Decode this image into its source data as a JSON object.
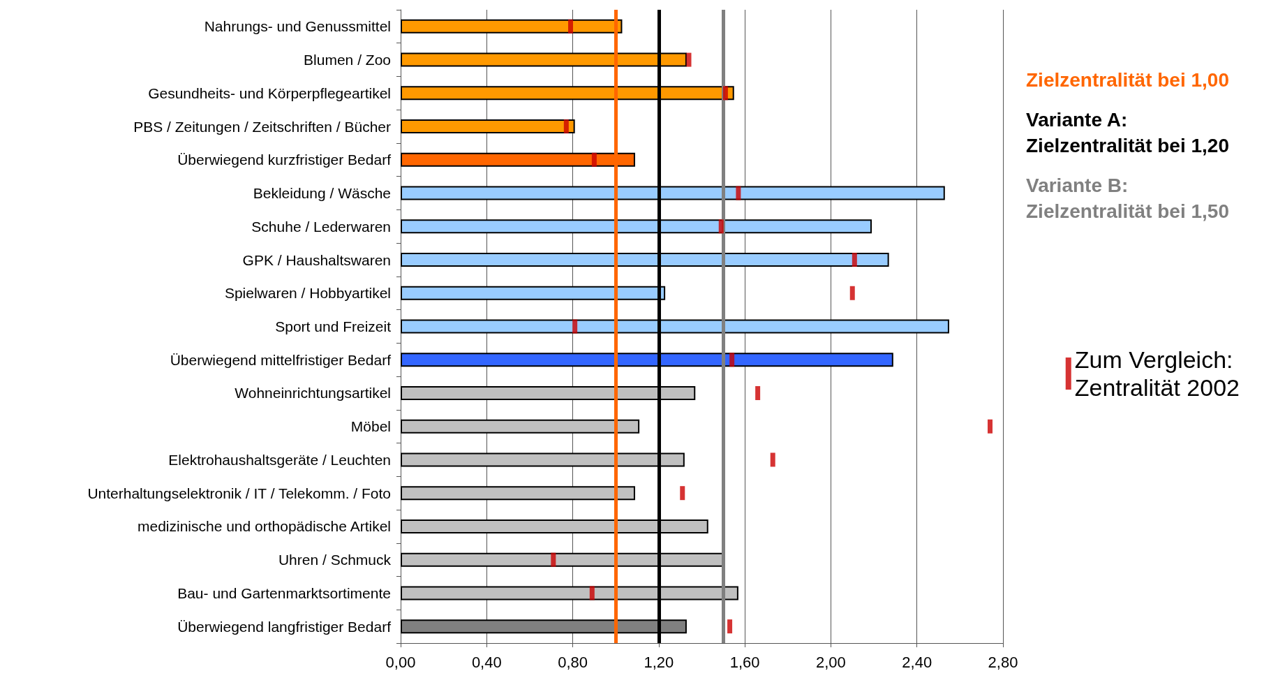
{
  "chart_data": {
    "type": "bar",
    "orientation": "horizontal",
    "categories": [
      "Nahrungs- und Genussmittel",
      "Blumen / Zoo",
      "Gesundheits- und Körperpflegeartikel",
      "PBS / Zeitungen / Zeitschriften / Bücher",
      "Überwiegend kurzfristiger Bedarf",
      "Bekleidung / Wäsche",
      "Schuhe / Lederwaren",
      "GPK / Haushaltswaren",
      "Spielwaren / Hobbyartikel",
      "Sport und Freizeit",
      "Überwiegend mittelfristiger Bedarf",
      "Wohneinrichtungsartikel",
      "Möbel",
      "Elektrohaushaltsgeräte / Leuchten",
      "Unterhaltungselektronik / IT / Telekomm. / Foto",
      "medizinische und orthopädische Artikel",
      "Uhren / Schmuck",
      "Bau- und Gartenmarktsortimente",
      "Überwiegend langfristiger Bedarf"
    ],
    "series": [
      {
        "type": "bar",
        "colors": [
          "#ff9900",
          "#ff9900",
          "#ff9900",
          "#ff9900",
          "#ff6600",
          "#99ccff",
          "#99ccff",
          "#99ccff",
          "#99ccff",
          "#99ccff",
          "#3366ff",
          "#c0c0c0",
          "#c0c0c0",
          "#c0c0c0",
          "#c0c0c0",
          "#c0c0c0",
          "#c0c0c0",
          "#c0c0c0",
          "#808080"
        ],
        "values": [
          1.03,
          1.33,
          1.55,
          0.81,
          1.09,
          2.53,
          2.19,
          2.27,
          1.23,
          2.55,
          2.29,
          1.37,
          1.11,
          1.32,
          1.09,
          1.43,
          1.5,
          1.57,
          1.33
        ]
      },
      {
        "type": "scatter",
        "name": "Zum Vergleich:\nZentralität 2002",
        "color": "#cc0000",
        "values": [
          0.79,
          1.34,
          1.51,
          0.77,
          0.9,
          1.57,
          1.49,
          2.11,
          2.1,
          0.81,
          1.54,
          1.66,
          2.74,
          1.73,
          1.31,
          null,
          0.71,
          0.89,
          1.53
        ]
      }
    ],
    "xlim": [
      0,
      2.8
    ],
    "xticks": [
      {
        "value": 0,
        "label": "0,00"
      },
      {
        "value": 0.4,
        "label": "0,40"
      },
      {
        "value": 0.8,
        "label": "0,80"
      },
      {
        "value": 1.2,
        "label": "1,20"
      },
      {
        "value": 1.6,
        "label": "1,60"
      },
      {
        "value": 2.0,
        "label": "2,00"
      },
      {
        "value": 2.4,
        "label": "2,40"
      },
      {
        "value": 2.8,
        "label": "2,80"
      }
    ],
    "ref_lines": [
      {
        "axis": "x",
        "value": 1.0,
        "label": "Zielzentralität bei 1,00",
        "color": "#ff6600"
      },
      {
        "axis": "x",
        "value": 1.2,
        "label": "Variante A:\nZielzentralität bei 1,20",
        "color": "#000000"
      },
      {
        "axis": "x",
        "value": 1.5,
        "label": "Variante B:\nZielzentralität bei 1,50",
        "color": "#808080"
      }
    ],
    "grid": "x",
    "legend": "right"
  }
}
